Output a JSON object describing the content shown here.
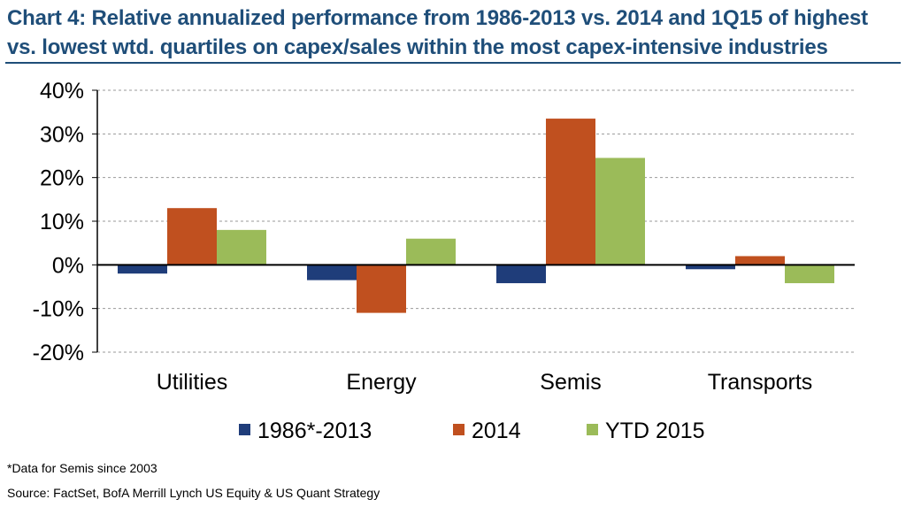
{
  "title": "Chart 4: Relative annualized performance from 1986-2013 vs. 2014 and 1Q15 of highest vs. lowest wtd. quartiles on capex/sales within the most capex-intensive industries",
  "footnote": "*Data for Semis since 2003",
  "source": "Source: FactSet, BofA Merrill Lynch US Equity & US Quant Strategy",
  "chart_data": {
    "type": "bar",
    "categories": [
      "Utilities",
      "Energy",
      "Semis",
      "Transports"
    ],
    "series": [
      {
        "name": "1986*-2013",
        "color": "#1f3d7a",
        "values": [
          -2.0,
          -3.5,
          -4.2,
          -1.0
        ]
      },
      {
        "name": "2014",
        "color": "#c0501f",
        "values": [
          13.0,
          -11.0,
          33.5,
          2.0
        ]
      },
      {
        "name": "YTD 2015",
        "color": "#9bbb59",
        "values": [
          8.0,
          6.0,
          24.5,
          -4.2
        ]
      }
    ],
    "ylim": [
      -20,
      40
    ],
    "yticks": [
      40,
      30,
      20,
      10,
      0,
      -10,
      -20
    ],
    "ytick_labels": [
      "40%",
      "30%",
      "20%",
      "10%",
      "0%",
      "-10%",
      "-20%"
    ],
    "grid": true,
    "legend": "bottom",
    "xlabel": "",
    "ylabel": ""
  }
}
